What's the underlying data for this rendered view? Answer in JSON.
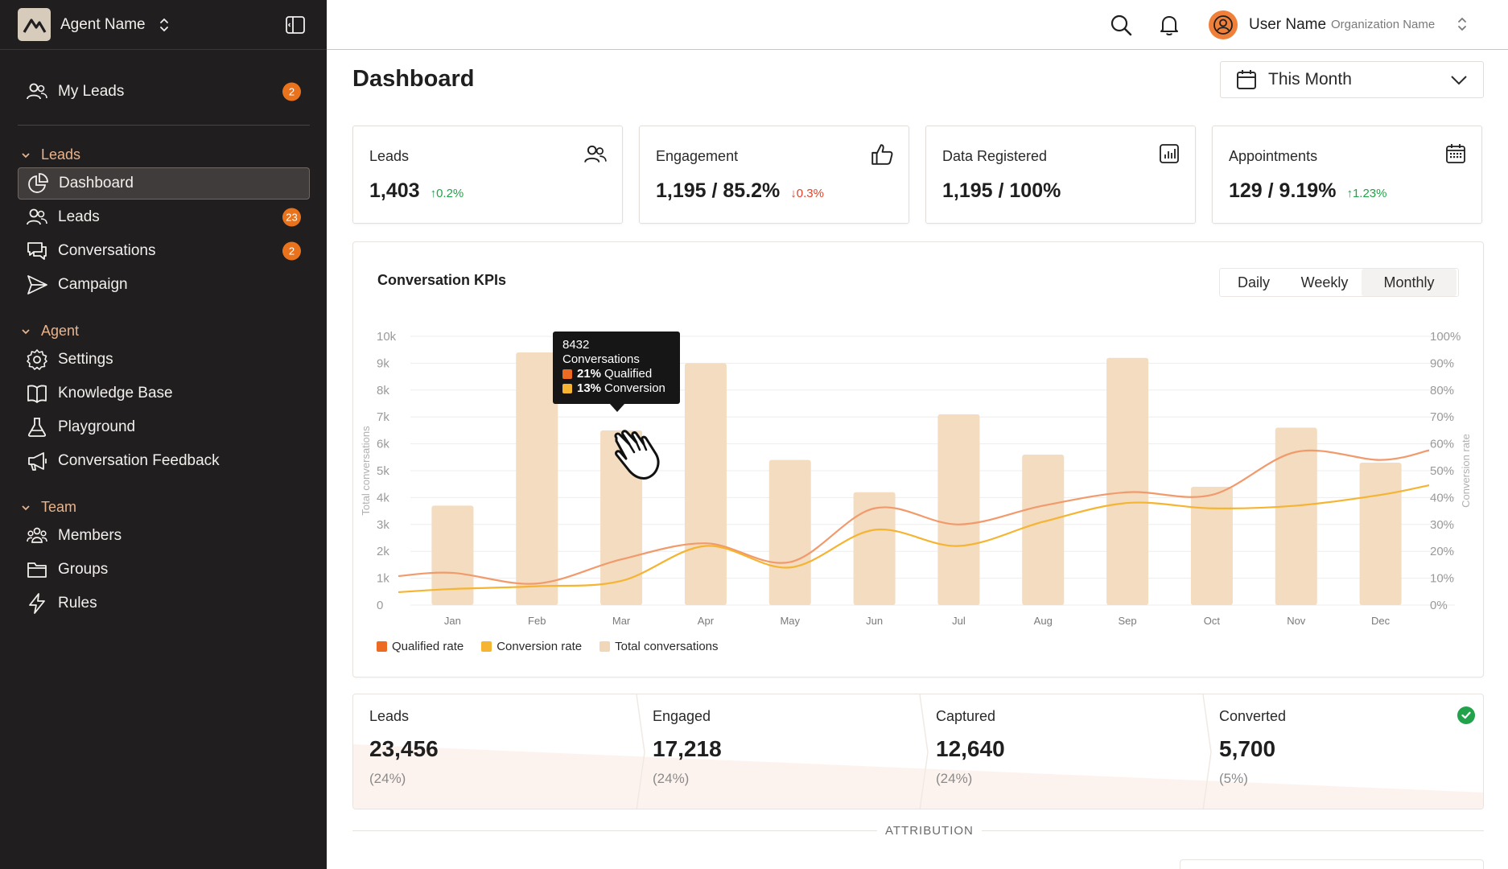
{
  "sidebar": {
    "agent_name": "Agent Name",
    "my_leads": {
      "label": "My Leads",
      "badge": "2"
    },
    "sections": [
      {
        "title": "Leads"
      },
      {
        "title": "Agent"
      },
      {
        "title": "Team"
      }
    ],
    "leads_items": [
      {
        "label": "Dashboard",
        "badge": ""
      },
      {
        "label": "Leads",
        "badge": "23"
      },
      {
        "label": "Conversations",
        "badge": "2"
      },
      {
        "label": "Campaign",
        "badge": ""
      }
    ],
    "agent_items": [
      {
        "label": "Settings"
      },
      {
        "label": "Knowledge Base"
      },
      {
        "label": "Playground"
      },
      {
        "label": "Conversation Feedback"
      }
    ],
    "team_items": [
      {
        "label": "Members"
      },
      {
        "label": "Groups"
      },
      {
        "label": "Rules"
      }
    ]
  },
  "topbar": {
    "user_name": "User Name",
    "org_name": "Organization Name"
  },
  "page": {
    "title": "Dashboard",
    "date_range": "This Month"
  },
  "stats": [
    {
      "title": "Leads",
      "value": "1,403",
      "delta": "↑0.2%",
      "direction": "up",
      "icon": "users-icon"
    },
    {
      "title": "Engagement",
      "value": "1,195 / 85.2%",
      "delta": "↓0.3%",
      "direction": "down",
      "icon": "thumbs-up-icon"
    },
    {
      "title": "Data Registered",
      "value": "1,195 / 100%",
      "delta": "",
      "direction": "none",
      "icon": "bar-chart-icon"
    },
    {
      "title": "Appointments",
      "value": "129 / 9.19%",
      "delta": "↑1.23%",
      "direction": "up",
      "icon": "calendar-icon"
    }
  ],
  "kpi": {
    "title": "Conversation KPIs",
    "tabs": [
      "Daily",
      "Weekly",
      "Monthly"
    ],
    "active_tab": "Monthly"
  },
  "tooltip": {
    "value": "8432",
    "label": "Conversations",
    "qualified_pct": "21%",
    "qualified_label": "Qualified",
    "conversion_pct": "13%",
    "conversion_label": "Conversion"
  },
  "chart_data": {
    "type": "bar",
    "title": "Conversation KPIs",
    "categories": [
      "Jan",
      "Feb",
      "Mar",
      "Apr",
      "May",
      "Jun",
      "Jul",
      "Aug",
      "Sep",
      "Oct",
      "Nov",
      "Dec"
    ],
    "ylabel": "Total conversations",
    "y2label": "Conversion rate",
    "ylim": [
      0,
      10000
    ],
    "y2lim": [
      0,
      100
    ],
    "y_ticks": [
      "0",
      "1k",
      "2k",
      "3k",
      "4k",
      "5k",
      "6k",
      "7k",
      "8k",
      "9k",
      "10k"
    ],
    "y2_ticks": [
      "0%",
      "10%",
      "20%",
      "30%",
      "40%",
      "50%",
      "60%",
      "70%",
      "80%",
      "90%",
      "100%"
    ],
    "series": [
      {
        "name": "Total conversations",
        "kind": "bar",
        "axis": "left",
        "values": [
          3700,
          9400,
          6500,
          9000,
          5400,
          4200,
          7100,
          5600,
          9200,
          4400,
          6600,
          5300
        ]
      },
      {
        "name": "Qualified rate",
        "kind": "line",
        "axis": "right",
        "values": [
          12,
          8,
          17,
          23,
          16,
          36,
          30,
          37,
          42,
          41,
          57,
          54
        ]
      },
      {
        "name": "Conversion rate",
        "kind": "line",
        "axis": "right",
        "values": [
          6,
          7,
          9,
          22,
          14,
          28,
          22,
          31,
          38,
          36,
          37,
          41
        ]
      }
    ],
    "colors": {
      "bar": "#f3dcc0",
      "qualified": "#f19a6c",
      "conversion": "#f5b432"
    },
    "legend": [
      "Qualified rate",
      "Conversion rate",
      "Total conversations"
    ],
    "legend_colors": [
      "#ec6a22",
      "#f5b432",
      "#f1d6b8"
    ]
  },
  "funnel": [
    {
      "label": "Leads",
      "value": "23,456",
      "pct": "(24%)"
    },
    {
      "label": "Engaged",
      "value": "17,218",
      "pct": "(24%)"
    },
    {
      "label": "Captured",
      "value": "12,640",
      "pct": "(24%)"
    },
    {
      "label": "Converted",
      "value": "5,700",
      "pct": "(5%)"
    }
  ],
  "attribution": "ATTRIBUTION"
}
